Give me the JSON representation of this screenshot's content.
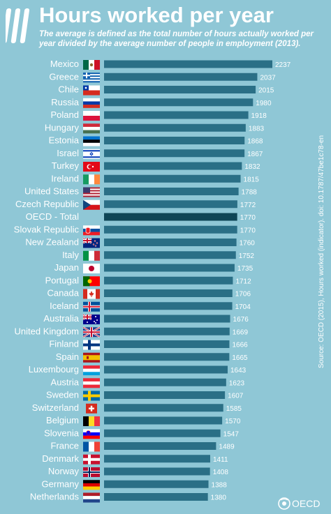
{
  "header": {
    "title": "Hours worked per year",
    "subtitle": "The average is defined as the total number of hours actually worked per year divided by the average number of people in employment (2013)."
  },
  "source": "Source: OECD (2015), Hours worked (indicator). doi: 10.1787/47be1c78-en",
  "brand": "OECD",
  "colors": {
    "background": "#8fc7d6",
    "bar": "#2a6f86",
    "highlight_bar": "#0e4556",
    "text": "#ffffff"
  },
  "chart_data": {
    "type": "bar",
    "orientation": "horizontal",
    "categories": [
      "Mexico",
      "Greece",
      "Chile",
      "Russia",
      "Poland",
      "Hungary",
      "Estonia",
      "Israel",
      "Turkey",
      "Ireland",
      "United States",
      "Czech Republic",
      "OECD - Total",
      "Slovak Republic",
      "New Zealand",
      "Italy",
      "Japan",
      "Portugal",
      "Canada",
      "Iceland",
      "Australia",
      "United Kingdom",
      "Finland",
      "Spain",
      "Luxembourg",
      "Austria",
      "Sweden",
      "Switzerland",
      "Belgium",
      "Slovenia",
      "France",
      "Denmark",
      "Norway",
      "Germany",
      "Netherlands"
    ],
    "values": [
      2237,
      2037,
      2015,
      1980,
      1918,
      1883,
      1868,
      1867,
      1832,
      1815,
      1788,
      1772,
      1770,
      1770,
      1760,
      1752,
      1735,
      1712,
      1706,
      1704,
      1676,
      1669,
      1666,
      1665,
      1643,
      1623,
      1607,
      1585,
      1570,
      1547,
      1489,
      1411,
      1408,
      1388,
      1380
    ],
    "labels": [
      "2237",
      "2037",
      "2015",
      "1980",
      "1918",
      "1883",
      "1868",
      "1867",
      "1832",
      "1815",
      "1788",
      "1772",
      "1770",
      "1770",
      "1760",
      "1752",
      "1735",
      "1712",
      "1706",
      "1704",
      "1676",
      "1669",
      "1666",
      "1665",
      "1643",
      "1623",
      "1607",
      "1585",
      "1570",
      "1547",
      "1489",
      "1411",
      "1408",
      "1388",
      "1380"
    ],
    "highlight": "OECD - Total",
    "flags": [
      "mexico-flag",
      "greece-flag",
      "chile-flag",
      "russia-flag",
      "poland-flag",
      "hungary-flag",
      "estonia-flag",
      "israel-flag",
      "turkey-flag",
      "ireland-flag",
      "united-states-flag",
      "czech-republic-flag",
      "",
      "slovakia-flag",
      "new-zealand-flag",
      "italy-flag",
      "japan-flag",
      "portugal-flag",
      "canada-flag",
      "iceland-flag",
      "australia-flag",
      "united-kingdom-flag",
      "finland-flag",
      "spain-flag",
      "luxembourg-flag",
      "austria-flag",
      "sweden-flag",
      "switzerland-flag",
      "belgium-flag",
      "slovenia-flag",
      "france-flag",
      "denmark-flag",
      "norway-flag",
      "germany-flag",
      "netherlands-flag"
    ],
    "xlabel": "",
    "ylabel": "",
    "grid": false
  }
}
